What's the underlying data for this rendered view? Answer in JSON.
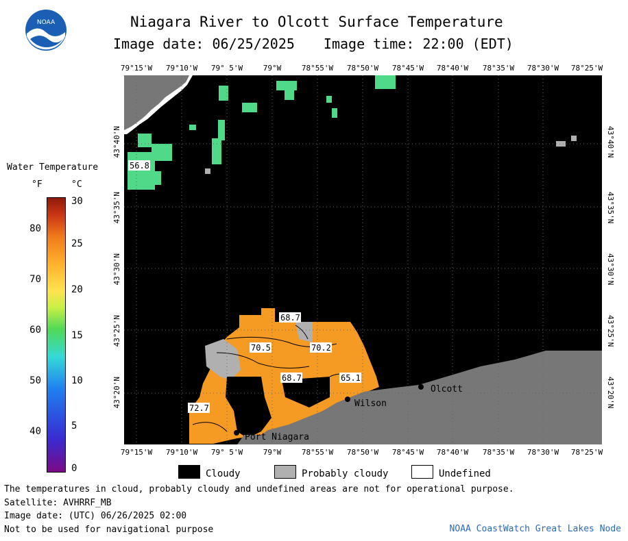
{
  "logo_text": "NOAA",
  "title": "Niagara River to Olcott Surface Temperature",
  "image_date_label": "Image date: 06/25/2025",
  "image_time_label": "Image time: 22:00 (EDT)",
  "lon_labels": [
    "79°15'W",
    "79°10'W",
    "79° 5'W",
    "79°W",
    "78°55'W",
    "78°50'W",
    "78°45'W",
    "78°40'W",
    "78°35'W",
    "78°30'W",
    "78°25'W"
  ],
  "lat_labels": [
    "43°40'N",
    "43°35'N",
    "43°30'N",
    "43°25'N",
    "43°20'N"
  ],
  "legend": {
    "title": "Water Temperature",
    "unit_f": "°F",
    "unit_c": "°C",
    "f_ticks": [
      "40",
      "50",
      "60",
      "70",
      "80"
    ],
    "c_ticks": [
      "0",
      "5",
      "10",
      "15",
      "20",
      "25",
      "30"
    ]
  },
  "places": [
    "Olcott",
    "Wilson",
    "Port Niagara"
  ],
  "temp_labels": [
    "56.8",
    "68.7",
    "70.5",
    "70.2",
    "68.7",
    "65.1",
    "72.7"
  ],
  "key": {
    "cloudy": "Cloudy",
    "probably_cloudy": "Probably cloudy",
    "undefined": "Undefined"
  },
  "footer": {
    "line1": "The temperatures in cloud, probably cloudy and undefined areas are not for operational purpose.",
    "line2": "Satellite: AVHRRF_MB",
    "line3": "Image date: (UTC) 06/26/2025  02:00",
    "line4": "Not to be used for navigational purpose",
    "node": "NOAA CoastWatch Great Lakes Node"
  },
  "colors": {
    "cloudy": "#000000",
    "probably_cloudy": "#b0b0b0",
    "land": "#777777",
    "undefined": "#ffffff",
    "warm_water": "#f59a22",
    "node_text": "#2a6ab8"
  }
}
